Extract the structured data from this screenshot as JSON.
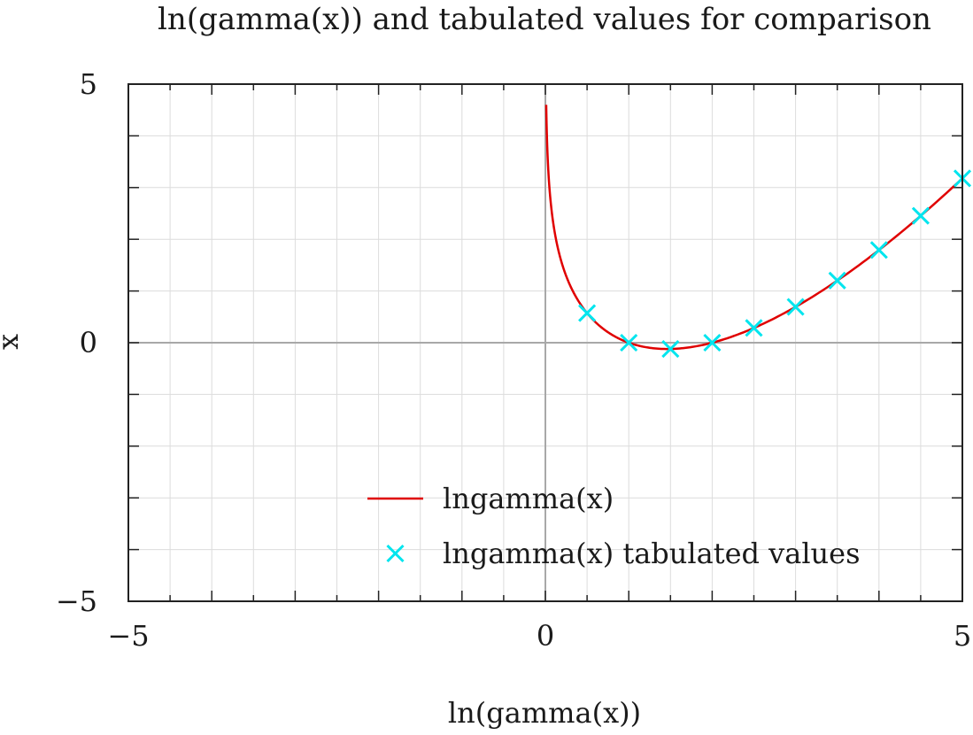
{
  "chart_data": {
    "type": "line",
    "title": "ln(gamma(x)) and tabulated values for comparison",
    "xlabel": "ln(gamma(x))",
    "ylabel": "x",
    "xlim": [
      -5,
      5
    ],
    "ylim": [
      -5,
      5
    ],
    "x_ticks": [
      -5,
      0,
      5
    ],
    "y_ticks": [
      -5,
      0,
      5
    ],
    "x_tick_labels": [
      "−5",
      "0",
      "5"
    ],
    "y_tick_labels": [
      "−5",
      "0",
      "5"
    ],
    "grid": true,
    "legend_position": "bottom-center",
    "series": [
      {
        "name": "lngamma(x)",
        "kind": "line",
        "color": "#e00000",
        "x": [
          0.01,
          0.02,
          0.04,
          0.07,
          0.1,
          0.15,
          0.2,
          0.3,
          0.4,
          0.5,
          0.6,
          0.7,
          0.8,
          0.9,
          1.0,
          1.2,
          1.4,
          1.46,
          1.6,
          1.8,
          2.0,
          2.5,
          3.0,
          3.5,
          4.0,
          4.5,
          5.0
        ],
        "y": [
          4.599,
          3.902,
          3.199,
          2.614,
          2.253,
          1.841,
          1.524,
          1.096,
          0.797,
          0.572,
          0.398,
          0.261,
          0.152,
          0.066,
          0.0,
          -0.085,
          -0.12,
          -0.121,
          -0.113,
          -0.071,
          0.0,
          0.285,
          0.693,
          1.201,
          1.792,
          2.454,
          3.178
        ]
      },
      {
        "name": "lngamma(x) tabulated values",
        "kind": "scatter",
        "marker": "x",
        "color": "#00e5ee",
        "x": [
          0.5,
          1.0,
          1.5,
          2.0,
          2.5,
          3.0,
          3.5,
          4.0,
          4.5,
          5.0
        ],
        "y": [
          0.572,
          0.0,
          -0.121,
          0.0,
          0.285,
          0.693,
          1.201,
          1.792,
          2.454,
          3.178
        ]
      }
    ]
  }
}
